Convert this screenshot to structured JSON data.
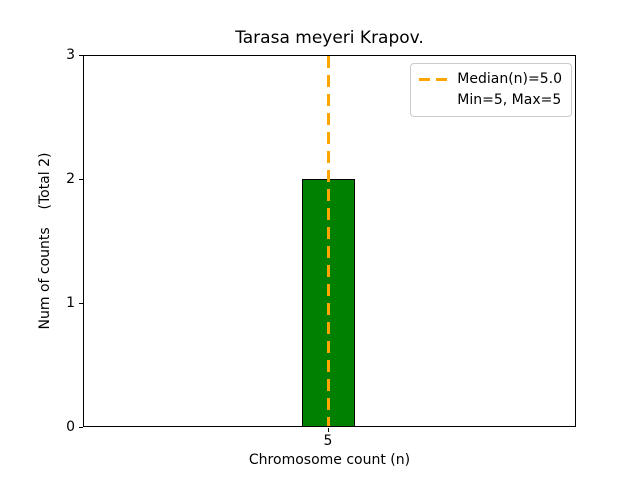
{
  "chart_data": {
    "type": "bar",
    "title": "Tarasa meyeri Krapov.",
    "xlabel": "Chromosome count (n)",
    "ylabel": "Num of counts    (Total 2)",
    "categories": [
      "5"
    ],
    "values": [
      2
    ],
    "total": 2,
    "ylim": [
      0,
      3
    ],
    "yticks": [
      "0",
      "1",
      "2",
      "3"
    ],
    "xticks": [
      "5"
    ],
    "bar_color": "#008000",
    "bar_edge_color": "#000000",
    "median_line": {
      "value": 5.0,
      "color": "#FFA500",
      "style": "dashed"
    },
    "legend": {
      "position": "upper right",
      "entries": [
        {
          "label": "Median(n)=5.0",
          "marker": "orange-dashed-line"
        },
        {
          "label": "Min=5, Max=5",
          "marker": "none"
        }
      ]
    },
    "background": "#ffffff",
    "grid": false
  }
}
